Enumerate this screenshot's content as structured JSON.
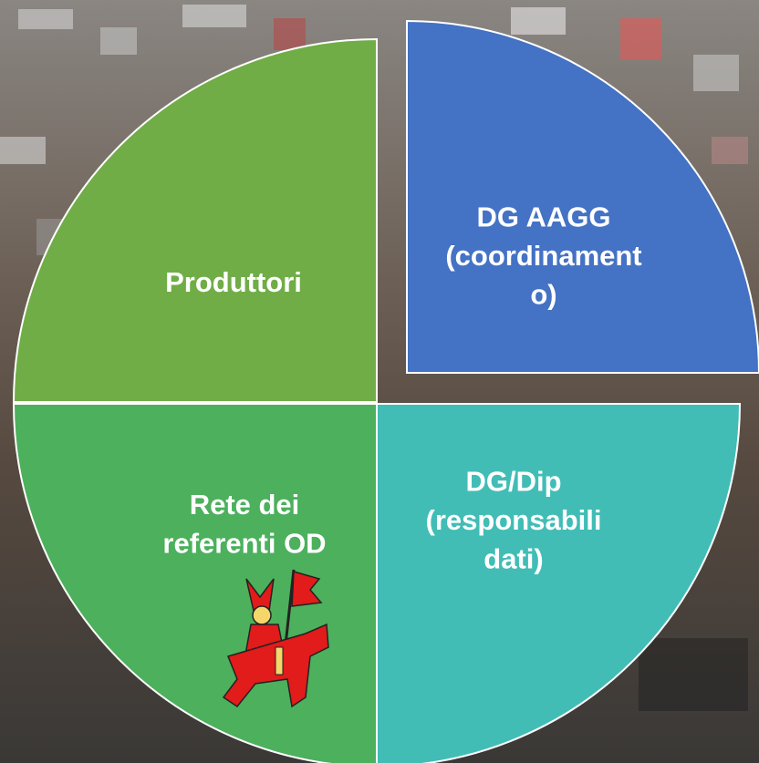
{
  "quadrants": [
    {
      "lines": [
        "Produttori"
      ]
    },
    {
      "lines": [
        "DG AAGG",
        "(coordinament",
        "o)"
      ]
    },
    {
      "lines": [
        "Rete dei",
        "referenti OD"
      ]
    },
    {
      "lines": [
        "DG/Dip",
        "(responsabili",
        "dati)"
      ]
    }
  ]
}
